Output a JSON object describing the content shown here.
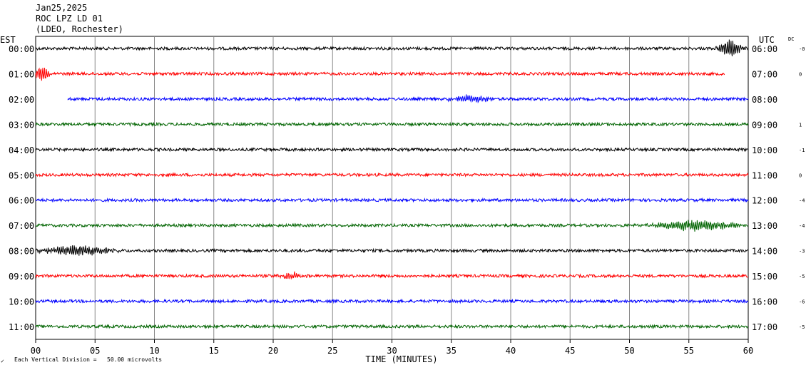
{
  "header": {
    "date": "Jan25,2025",
    "station": "ROC LPZ LD 01",
    "network": "(LDEO, Rochester)"
  },
  "labels": {
    "left_tz": "EST",
    "right_tz": "UTC",
    "dc": "DC",
    "xlabel": "TIME (MINUTES)",
    "footnote": "Each Vertical Division =   50.00 microvolts",
    "corner": "✓"
  },
  "chart_data": {
    "type": "line",
    "title": "ROC LPZ LD 01",
    "xlabel": "TIME (MINUTES)",
    "xlim": [
      0,
      60
    ],
    "x_ticks": [
      "00",
      "05",
      "10",
      "15",
      "20",
      "25",
      "30",
      "35",
      "40",
      "45",
      "50",
      "55",
      "60"
    ],
    "grid": true,
    "colors": [
      "#000000",
      "#ff0000",
      "#0000ff",
      "#006400"
    ],
    "rows": [
      {
        "est": "00:00",
        "utc": "06:00",
        "dc": "-0",
        "color": "#000000",
        "start": 0,
        "end": 60,
        "events": [
          {
            "t": 58.5,
            "amp": 2.4,
            "dur": 1.5
          }
        ]
      },
      {
        "est": "01:00",
        "utc": "07:00",
        "dc": "0",
        "color": "#ff0000",
        "start": 0,
        "end": 58,
        "events": [
          {
            "t": 0.5,
            "amp": 2.0,
            "dur": 1.0
          }
        ]
      },
      {
        "est": "02:00",
        "utc": "08:00",
        "dc": "",
        "color": "#0000ff",
        "start": 2.7,
        "end": 60,
        "events": [
          {
            "t": 36.5,
            "amp": 0.9,
            "dur": 3.0
          }
        ]
      },
      {
        "est": "03:00",
        "utc": "09:00",
        "dc": "1",
        "color": "#006400",
        "start": 0,
        "end": 60,
        "events": []
      },
      {
        "est": "04:00",
        "utc": "10:00",
        "dc": "-1",
        "color": "#000000",
        "start": 0,
        "end": 60,
        "events": []
      },
      {
        "est": "05:00",
        "utc": "11:00",
        "dc": "0",
        "color": "#ff0000",
        "start": 0,
        "end": 60,
        "events": []
      },
      {
        "est": "06:00",
        "utc": "12:00",
        "dc": "-4",
        "color": "#0000ff",
        "start": 0,
        "end": 60,
        "events": []
      },
      {
        "est": "07:00",
        "utc": "13:00",
        "dc": "-4",
        "color": "#006400",
        "start": 0,
        "end": 60,
        "events": [
          {
            "t": 55.5,
            "amp": 1.3,
            "dur": 6.0
          }
        ]
      },
      {
        "est": "08:00",
        "utc": "14:00",
        "dc": "-3",
        "color": "#000000",
        "start": 0,
        "end": 60,
        "events": [
          {
            "t": 3.5,
            "amp": 1.3,
            "dur": 5.0
          }
        ]
      },
      {
        "est": "09:00",
        "utc": "15:00",
        "dc": "-5",
        "color": "#ff0000",
        "start": 0,
        "end": 60,
        "events": [
          {
            "t": 21.5,
            "amp": 0.8,
            "dur": 1.8
          }
        ]
      },
      {
        "est": "10:00",
        "utc": "16:00",
        "dc": "-6",
        "color": "#0000ff",
        "start": 0,
        "end": 60,
        "events": []
      },
      {
        "est": "11:00",
        "utc": "17:00",
        "dc": "-5",
        "color": "#006400",
        "start": 0,
        "end": 60,
        "events": []
      }
    ]
  }
}
